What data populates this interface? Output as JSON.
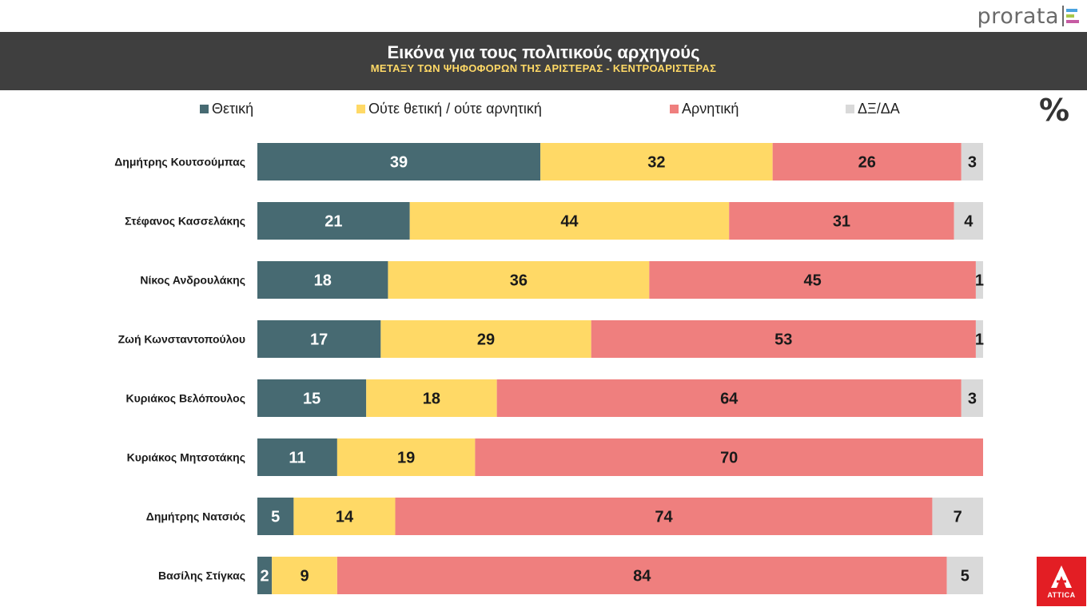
{
  "brand": {
    "name": "prorata"
  },
  "header": {
    "title": "Εικόνα για τους πολιτικούς αρχηγούς",
    "subtitle": "ΜΕΤΑΞΥ ΤΩΝ ΨΗΦΟΦΟΡΩΝ ΤΗΣ ΑΡΙΣΤΕΡΑΣ - ΚΕΝΤΡΟΑΡΙΣΤΕΡΑΣ"
  },
  "unit_symbol": "%",
  "logo": {
    "text": "ATTICA",
    "color": "#e31e24"
  },
  "colors": {
    "header_bg": "#3f3f3f",
    "subtitle": "#ffd966",
    "positive": "#476a72",
    "neutral": "#ffd966",
    "negative": "#ef7f7e",
    "dkna": "#d9d9d9"
  },
  "chart_data": {
    "type": "bar",
    "orientation": "horizontal",
    "stacked": true,
    "xlim": [
      0,
      100
    ],
    "grid": false,
    "legend_position": "top",
    "categories": [
      "Δημήτρης Κουτσούμπας",
      "Στέφανος Κασσελάκης",
      "Νίκος Ανδρουλάκης",
      "Ζωή Κωνσταντοπούλου",
      "Κυριάκος Βελόπουλος",
      "Κυριάκος Μητσοτάκης",
      "Δημήτρης Νατσιός",
      "Βασίλης Στίγκας"
    ],
    "series": [
      {
        "name": "Θετική",
        "color": "#476a72",
        "label_color": "#ffffff",
        "values": [
          39,
          21,
          18,
          17,
          15,
          11,
          5,
          2
        ]
      },
      {
        "name": "Ούτε θετική / ούτε αρνητική",
        "color": "#ffd966",
        "label_color": "#1a1a1a",
        "values": [
          32,
          44,
          36,
          29,
          18,
          19,
          14,
          9
        ]
      },
      {
        "name": "Αρνητική",
        "color": "#ef7f7e",
        "label_color": "#1a1a1a",
        "values": [
          26,
          31,
          45,
          53,
          64,
          70,
          74,
          84
        ]
      },
      {
        "name": "ΔΞ/ΔΑ",
        "color": "#d9d9d9",
        "label_color": "#1a1a1a",
        "values": [
          3,
          4,
          1,
          1,
          3,
          0,
          7,
          5
        ]
      }
    ]
  }
}
